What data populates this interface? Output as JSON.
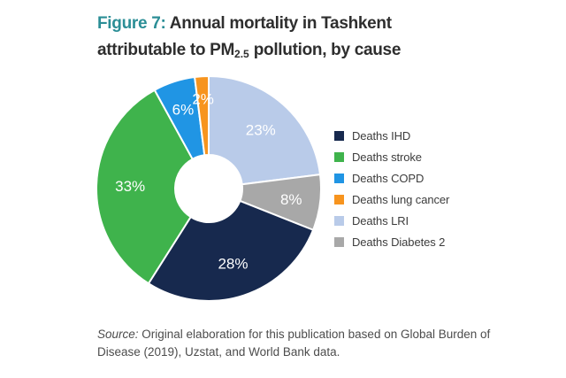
{
  "title": {
    "figure_label": "Figure 7:",
    "line1_rest": " Annual mortality in Tashkent",
    "line2_pre": "attributable to PM",
    "line2_sub": "2.5",
    "line2_post": " pollution, by cause"
  },
  "source": {
    "prefix": "Source:",
    "text": " Original elaboration for this publication based on Global Burden of Disease (2019), Uzstat, and World Bank data."
  },
  "colors": {
    "figure_label_teal": "#2b8e96",
    "title_text": "#2e2e2e",
    "slice_label_text": "#ffffff",
    "legend_text": "#3c3c3c",
    "source_text": "#4c4c4c"
  },
  "chart_data": {
    "type": "pie",
    "variant": "donut",
    "title": "Annual mortality in Tashkent attributable to PM2.5 pollution, by cause",
    "unit": "%",
    "legend_position": "right",
    "direction": "clockwise",
    "start_angle_deg": 0,
    "inner_radius_ratio": 0.3,
    "series": [
      {
        "name": "Deaths IHD",
        "value": 28,
        "color": "#17294e",
        "label": "28%"
      },
      {
        "name": "Deaths stroke",
        "value": 33,
        "color": "#3fb34c",
        "label": "33%"
      },
      {
        "name": "Deaths COPD",
        "value": 6,
        "color": "#2095e4",
        "label": "6%"
      },
      {
        "name": "Deaths lung cancer",
        "value": 2,
        "color": "#f7941e",
        "label": "2%"
      },
      {
        "name": "Deaths LRI",
        "value": 23,
        "color": "#b9cbe9",
        "label": "23%"
      },
      {
        "name": "Deaths Diabetes 2",
        "value": 8,
        "color": "#a8a8a8",
        "label": "8%"
      }
    ],
    "clockwise_order_from_top": [
      4,
      5,
      0,
      1,
      2,
      3
    ]
  }
}
